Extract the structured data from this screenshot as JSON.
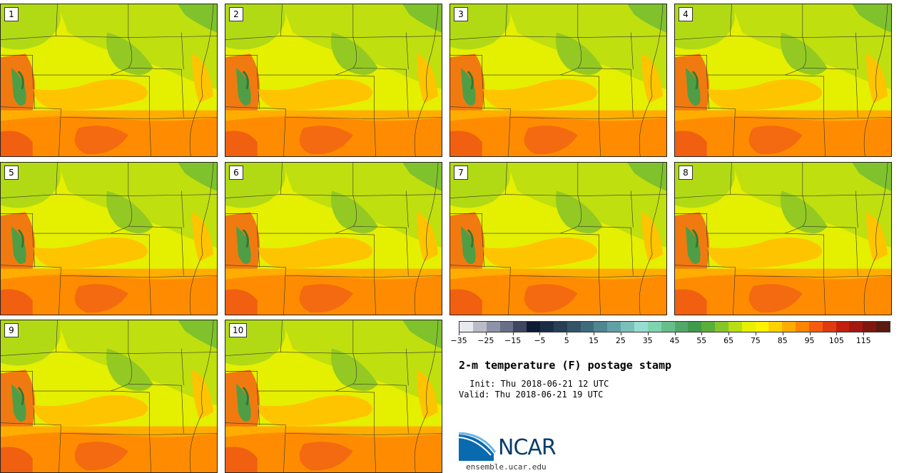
{
  "panels": [
    {
      "label": "1"
    },
    {
      "label": "2"
    },
    {
      "label": "3"
    },
    {
      "label": "4"
    },
    {
      "label": "5"
    },
    {
      "label": "6"
    },
    {
      "label": "7"
    },
    {
      "label": "8"
    },
    {
      "label": "9"
    },
    {
      "label": "10"
    }
  ],
  "colorbar": {
    "colors": [
      "#e8eaef",
      "#b9bcc8",
      "#8f93a8",
      "#6a6f89",
      "#3f4660",
      "#0f1a33",
      "#1b2c45",
      "#283f55",
      "#345569",
      "#3f6c7d",
      "#4f8690",
      "#63a0a5",
      "#7bbfba",
      "#95ddd1",
      "#7fd4b0",
      "#66bf8a",
      "#52a86a",
      "#3f9a4b",
      "#5bae3a",
      "#86c62a",
      "#b7de17",
      "#e8f000",
      "#fff200",
      "#ffd200",
      "#ffac00",
      "#ff8400",
      "#f45c10",
      "#de3b10",
      "#c2200c",
      "#a31810",
      "#7d1710",
      "#5a1a0f"
    ],
    "tick_labels": [
      "−35",
      "−25",
      "−15",
      "−5",
      "5",
      "15",
      "25",
      "35",
      "45",
      "55",
      "65",
      "75",
      "85",
      "95",
      "105",
      "115"
    ]
  },
  "title": "2-m temperature (F) postage stamp",
  "init_line": " Init: Thu 2018-06-21 12 UTC",
  "valid_line": "Valid: Thu 2018-06-21 19 UTC",
  "logo": {
    "name": "NCAR",
    "url_text": "ensemble.ucar.edu",
    "color": "#0a3d6e"
  }
}
